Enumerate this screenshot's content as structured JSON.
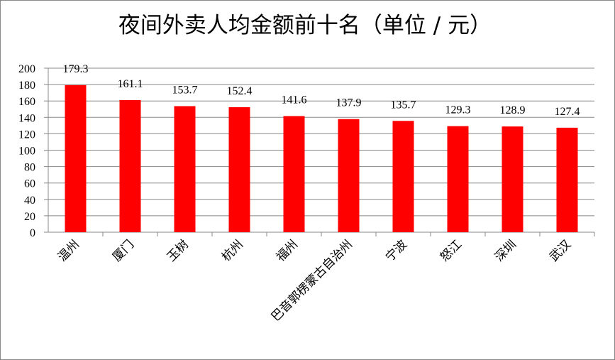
{
  "chart_data": {
    "type": "bar",
    "title": "夜间外卖人均金额前十名（单位 / 元）",
    "categories": [
      "温州",
      "厦门",
      "玉树",
      "杭州",
      "福州",
      "巴音郭楞蒙古自治州",
      "宁波",
      "怒江",
      "深圳",
      "武汉"
    ],
    "values": [
      179.3,
      161.1,
      153.7,
      152.4,
      141.6,
      137.9,
      135.7,
      129.3,
      128.9,
      127.4
    ],
    "color": "#ff0000",
    "ylim": [
      0,
      200
    ],
    "yticks": [
      0,
      20,
      40,
      60,
      80,
      100,
      120,
      140,
      160,
      180,
      200
    ],
    "grid": true
  }
}
